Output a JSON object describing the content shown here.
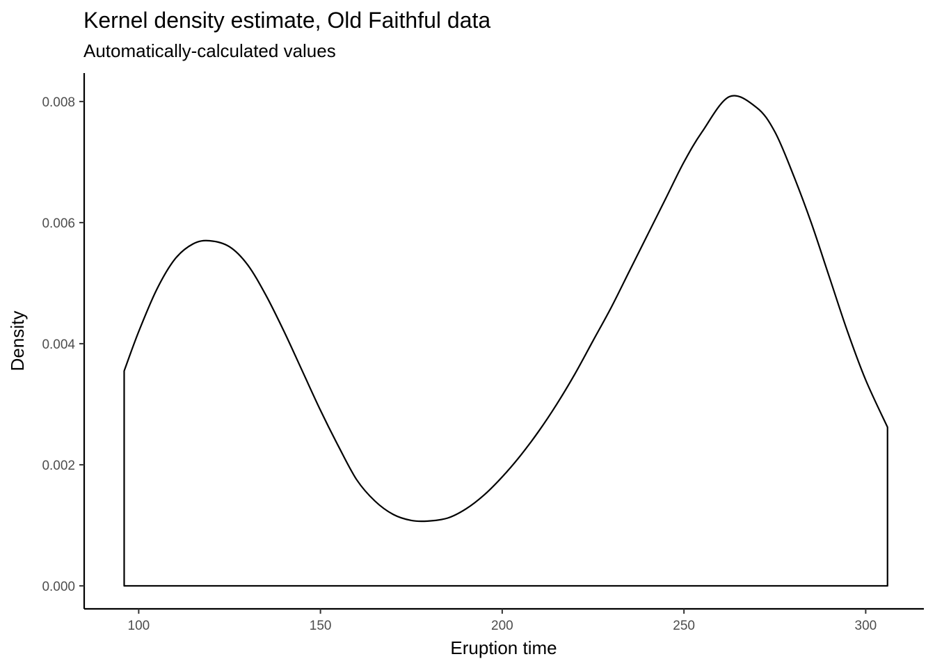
{
  "chart_data": {
    "type": "area",
    "title": "Kernel density estimate, Old Faithful data",
    "subtitle": "Automatically-calculated values",
    "xlabel": "Eruption time",
    "ylabel": "Density",
    "xlim": [
      85,
      316
    ],
    "ylim": [
      -0.00038,
      0.00847
    ],
    "x_ticks": [
      100,
      150,
      200,
      250,
      300
    ],
    "y_ticks": [
      0,
      0.002,
      0.004,
      0.006,
      0.008
    ],
    "y_tick_labels": [
      "0.000",
      "0.002",
      "0.004",
      "0.006",
      "0.008"
    ],
    "grid": false,
    "line_color": "#000000",
    "fill": "none",
    "series": [
      {
        "x": [
          96,
          100,
          105,
          110,
          115,
          119.5,
          125,
          130,
          135,
          140,
          145,
          150,
          155,
          160,
          165,
          170,
          175,
          179.5,
          185,
          190,
          195,
          200,
          205,
          210,
          215,
          220,
          225,
          230,
          235,
          240,
          245,
          250,
          255,
          262.5,
          270,
          275,
          280,
          285,
          290,
          295,
          300,
          306
        ],
        "y": [
          0.00355,
          0.0042,
          0.0049,
          0.0054,
          0.00565,
          0.0057,
          0.0056,
          0.0053,
          0.0048,
          0.0042,
          0.00355,
          0.0029,
          0.0023,
          0.00175,
          0.0014,
          0.00118,
          0.00108,
          0.00107,
          0.00112,
          0.00127,
          0.0015,
          0.0018,
          0.00215,
          0.00255,
          0.003,
          0.0035,
          0.00405,
          0.0046,
          0.0052,
          0.0058,
          0.0064,
          0.007,
          0.0075,
          0.00808,
          0.0079,
          0.0075,
          0.0068,
          0.006,
          0.0051,
          0.0042,
          0.0034,
          0.00262
        ]
      }
    ]
  }
}
